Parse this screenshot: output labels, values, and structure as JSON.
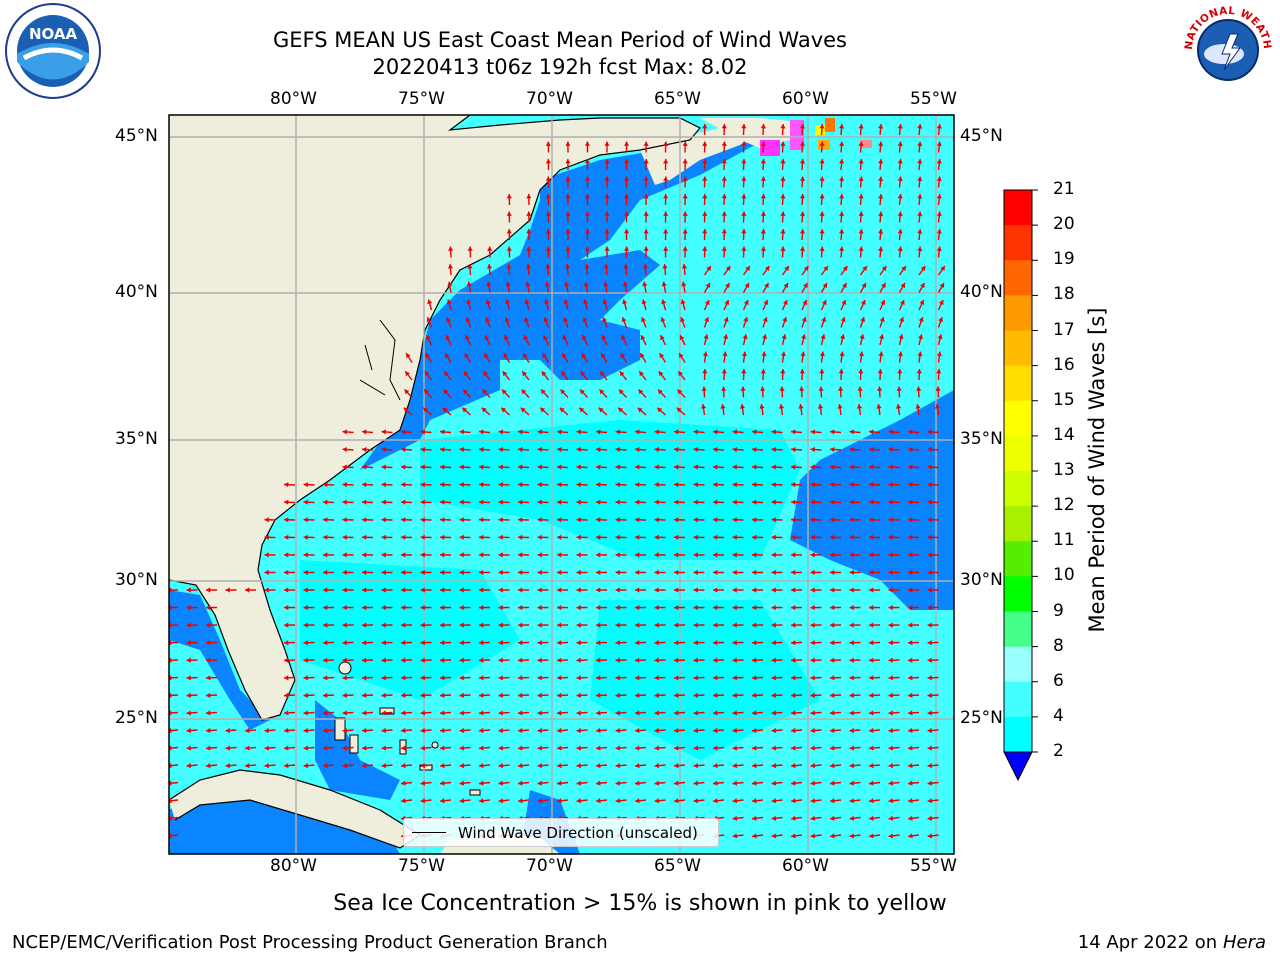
{
  "title": {
    "line1": "GEFS MEAN US East Coast Mean Period of Wind Waves",
    "line2": "20220413 t06z 192h fcst   Max: 8.02"
  },
  "lon_labels": [
    "80°W",
    "75°W",
    "70°W",
    "65°W",
    "60°W",
    "55°W"
  ],
  "lat_labels": [
    "45°N",
    "40°N",
    "35°N",
    "30°N",
    "25°N"
  ],
  "colorbar": {
    "label": "Mean Period of Wind Waves [s]",
    "ticks": [
      "2",
      "4",
      "6",
      "8",
      "9",
      "10",
      "11",
      "12",
      "13",
      "14",
      "15",
      "16",
      "17",
      "18",
      "19",
      "20",
      "21"
    ],
    "colors": [
      "#0055ff",
      "#00ffff",
      "#44ffff",
      "#99ffff",
      "#44ff88",
      "#00ff00",
      "#55ee00",
      "#aaee00",
      "#ccff00",
      "#eeff00",
      "#ffff00",
      "#ffdd00",
      "#ffbb00",
      "#ff9900",
      "#ff6600",
      "#ff3300",
      "#ff0000"
    ],
    "under_color": "#0000ff"
  },
  "legend": {
    "label": "Wind Wave Direction (unscaled)"
  },
  "sea_ice_note": "Sea Ice Concentration > 15% is shown in pink to yellow",
  "footer": {
    "left": "NCEP/EMC/Verification Post Processing Product Generation Branch",
    "right_date": "14 Apr 2022 on ",
    "right_machine": "Hera"
  },
  "logos": {
    "left": "NOAA",
    "right": "NATIONAL WEATHER SERVICE"
  },
  "colors": {
    "land": "#efeddc",
    "ocean_light": "#44ffff",
    "ocean_mid": "#00ffff",
    "ocean_dark": "#0a84ff",
    "arrow": "#ee0000",
    "grid": "#b0b0b0"
  }
}
